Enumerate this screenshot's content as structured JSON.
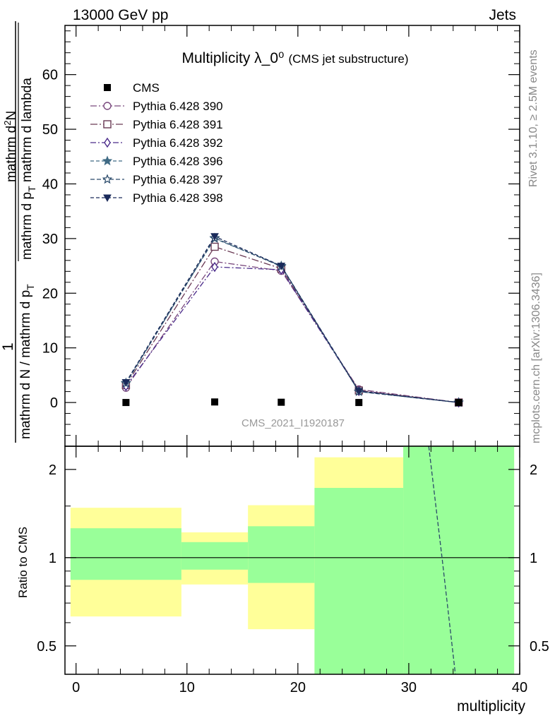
{
  "header": {
    "left": "13000 GeV pp",
    "right": "Jets"
  },
  "side_labels": {
    "top": "Rivet 3.1.10, ≥ 2.5M events",
    "bottom": "mcplots.cern.ch [arXiv:1306.3436]"
  },
  "watermark": "CMS_2021_I1920187",
  "chart_data": {
    "type": "line",
    "title": "Multiplicity λ_0⁰",
    "subtitle": "(CMS jet substructure)",
    "xlabel": "multiplicity",
    "ylabel": "1 / mathrm d N / mathrm d p_T mathrm d^2N / mathrm d p_T mathrm d lambda",
    "ylabel_parts": {
      "numerator": "1",
      "denominator": "mathrm d N / mathrm d p",
      "den_sub": "T",
      "right_top": "mathrm d",
      "right_sup": "2",
      "right_top_end": "N",
      "right_bottom": "mathrm d p",
      "right_sub": "T",
      "right_bottom_end": " mathrm d lambda"
    },
    "xlim": [
      -1,
      40
    ],
    "ylim": [
      -8,
      69
    ],
    "x_ticks": [
      0,
      10,
      20,
      30,
      40
    ],
    "y_ticks": [
      0,
      10,
      20,
      30,
      40,
      50,
      60
    ],
    "legend_position": "top-left",
    "x": [
      4.5,
      12.5,
      18.5,
      25.5,
      34.5
    ],
    "data": {
      "name": "CMS",
      "values": [
        0.0,
        0.1,
        0.05,
        0.0,
        0.0
      ]
    },
    "series": [
      {
        "name": "Pythia 6.428 390",
        "color": "#7a4a7e",
        "marker": "circle-open",
        "dash": "9,3,2,3",
        "values": [
          2.7,
          25.8,
          24.1,
          2.4,
          0.0
        ]
      },
      {
        "name": "Pythia 6.428 391",
        "color": "#6a3a54",
        "marker": "square-open",
        "dash": "10,3,2,3",
        "values": [
          3.2,
          28.5,
          24.5,
          2.2,
          0.0
        ]
      },
      {
        "name": "Pythia 6.428 392",
        "color": "#4a2a8a",
        "marker": "diamond-open",
        "dash": "8,3,2,3",
        "values": [
          3.0,
          24.8,
          24.3,
          2.1,
          0.0
        ]
      },
      {
        "name": "Pythia 6.428 396",
        "color": "#3f6a84",
        "marker": "star-filled",
        "dash": "5,3",
        "values": [
          3.6,
          30.0,
          25.0,
          2.0,
          0.0
        ]
      },
      {
        "name": "Pythia 6.428 397",
        "color": "#2a4a6a",
        "marker": "star-open",
        "dash": "6,3",
        "values": [
          3.5,
          30.1,
          24.9,
          2.0,
          0.0
        ]
      },
      {
        "name": "Pythia 6.428 398",
        "color": "#1a2a5a",
        "marker": "triangle-down-filled",
        "dash": "5,3",
        "values": [
          3.7,
          30.4,
          25.0,
          2.1,
          0.0
        ]
      }
    ],
    "ratio": {
      "ylabel": "Ratio to CMS",
      "ylim": [
        0.4,
        2.4
      ],
      "ticks": [
        0.5,
        1,
        2
      ],
      "bins": [
        {
          "x0": -0.5,
          "x1": 9.5,
          "green": [
            0.84,
            1.26
          ],
          "yellow": [
            0.63,
            1.48
          ]
        },
        {
          "x0": 9.5,
          "x1": 15.5,
          "green": [
            0.91,
            1.13
          ],
          "yellow": [
            0.81,
            1.22
          ]
        },
        {
          "x0": 15.5,
          "x1": 21.5,
          "green": [
            0.82,
            1.28
          ],
          "yellow": [
            0.57,
            1.51
          ]
        },
        {
          "x0": 21.5,
          "x1": 29.5,
          "green": [
            0.4,
            1.73
          ],
          "yellow": [
            0.4,
            2.2
          ]
        },
        {
          "x0": 29.5,
          "x1": 39.5,
          "green": [
            0.4,
            2.4
          ],
          "yellow": [
            0.4,
            2.4
          ]
        }
      ],
      "mc_line": {
        "x": [
          31.8,
          33.0,
          34.2
        ],
        "y": [
          2.4,
          1.0,
          0.4
        ]
      }
    },
    "colors": {
      "green_band": "#99ff99",
      "yellow_band": "#ffff99",
      "data_marker": "#000000"
    }
  }
}
